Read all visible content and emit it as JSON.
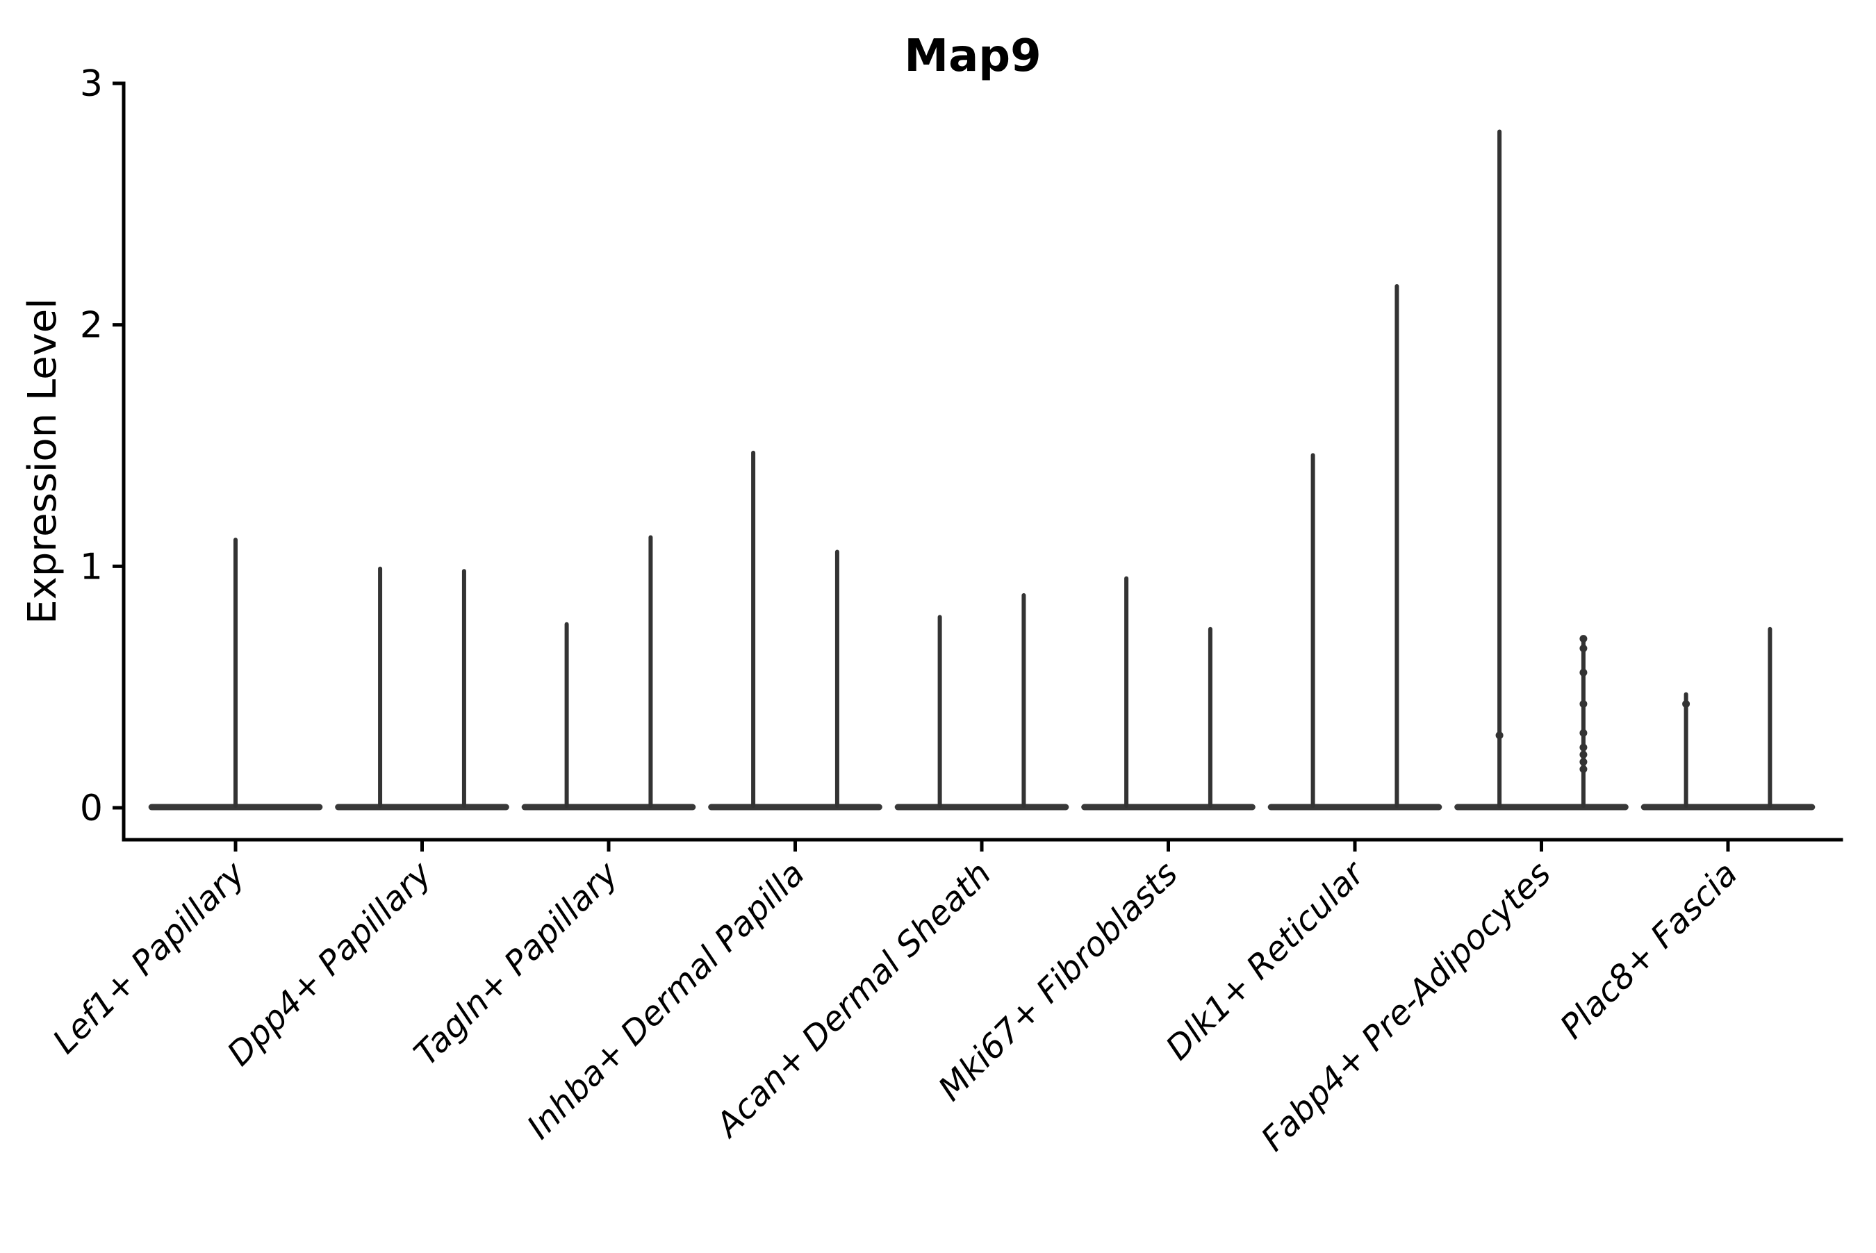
{
  "title": "Map9",
  "ylabel": "Expression Level",
  "chart_data": {
    "type": "violin",
    "title": "Map9",
    "xlabel": "",
    "ylabel": "Expression Level",
    "ylim": [
      0,
      3
    ],
    "yticks": [
      0,
      1,
      2,
      3
    ],
    "grid": false,
    "legend": "none",
    "categories": [
      "Lef1+ Papillary",
      "Dpp4+ Papillary",
      "Tagln+ Papillary",
      "Inhba+ Dermal Papilla",
      "Acan+ Dermal Sheath",
      "Mki67+ Fibroblasts",
      "Dlk1+ Reticular",
      "Fabp4+ Pre-Adipocytes",
      "Plac8+ Fascia"
    ],
    "base_halfwidth": 0.45,
    "violins": [
      {
        "category": "Lef1+ Papillary",
        "cat_index": 0,
        "violins": [
          {
            "offset": 0.0,
            "max": 1.11,
            "points": []
          }
        ]
      },
      {
        "category": "Dpp4+ Papillary",
        "cat_index": 1,
        "violins": [
          {
            "offset": -0.225,
            "max": 0.99,
            "points": []
          },
          {
            "offset": 0.225,
            "max": 0.98,
            "points": []
          }
        ]
      },
      {
        "category": "Tagln+ Papillary",
        "cat_index": 2,
        "violins": [
          {
            "offset": -0.225,
            "max": 0.76,
            "points": []
          },
          {
            "offset": 0.225,
            "max": 1.12,
            "points": []
          }
        ]
      },
      {
        "category": "Inhba+ Dermal Papilla",
        "cat_index": 3,
        "violins": [
          {
            "offset": -0.225,
            "max": 1.47,
            "points": []
          },
          {
            "offset": 0.225,
            "max": 1.06,
            "points": []
          }
        ]
      },
      {
        "category": "Acan+ Dermal Sheath",
        "cat_index": 4,
        "violins": [
          {
            "offset": -0.225,
            "max": 0.79,
            "points": []
          },
          {
            "offset": 0.225,
            "max": 0.88,
            "points": []
          }
        ]
      },
      {
        "category": "Mki67+ Fibroblasts",
        "cat_index": 5,
        "violins": [
          {
            "offset": -0.225,
            "max": 0.95,
            "points": []
          },
          {
            "offset": 0.225,
            "max": 0.74,
            "points": []
          }
        ]
      },
      {
        "category": "Dlk1+ Reticular",
        "cat_index": 6,
        "violins": [
          {
            "offset": -0.225,
            "max": 1.46,
            "points": []
          },
          {
            "offset": 0.225,
            "max": 2.16,
            "points": []
          }
        ]
      },
      {
        "category": "Fabp4+ Pre-Adipocytes",
        "cat_index": 7,
        "violins": [
          {
            "offset": -0.225,
            "max": 2.8,
            "points": [
              0.3
            ]
          },
          {
            "offset": 0.225,
            "max": 0.7,
            "points": [
              0.7,
              0.66,
              0.56,
              0.43,
              0.31,
              0.25,
              0.22,
              0.19,
              0.16
            ]
          }
        ]
      },
      {
        "category": "Plac8+ Fascia",
        "cat_index": 8,
        "violins": [
          {
            "offset": -0.225,
            "max": 0.47,
            "points": [
              0.43
            ]
          },
          {
            "offset": 0.225,
            "max": 0.74,
            "points": []
          }
        ]
      }
    ]
  },
  "colors": {
    "violin_stroke": "#333333",
    "violin_base": "#383838",
    "axis": "#000000",
    "background": "#ffffff"
  }
}
